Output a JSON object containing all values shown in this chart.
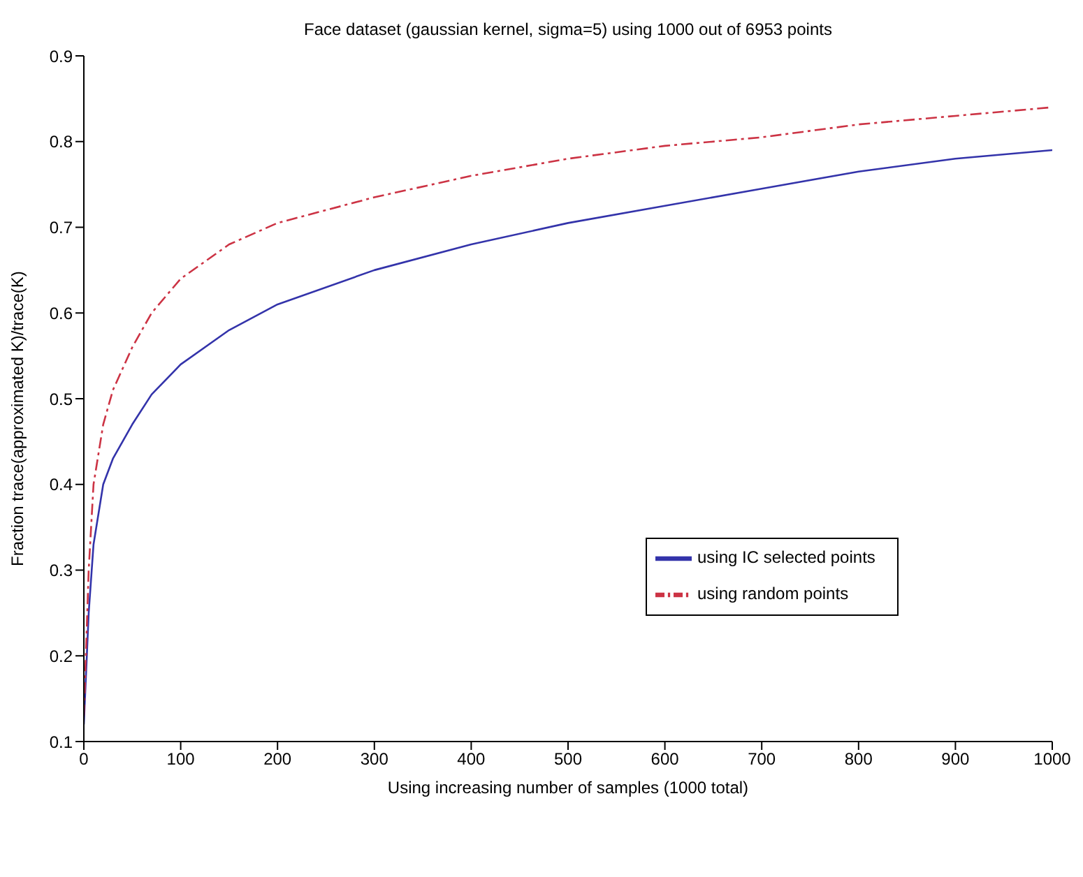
{
  "chart_data": {
    "type": "line",
    "title": "Face dataset (gaussian kernel, sigma=5) using 1000 out of 6953 points",
    "xlabel": "Using increasing number of samples (1000 total)",
    "ylabel": "Fraction trace(approximated K)/trace(K)",
    "x": [
      0,
      5,
      10,
      20,
      30,
      50,
      70,
      100,
      150,
      200,
      300,
      400,
      500,
      600,
      700,
      800,
      900,
      1000
    ],
    "series": [
      {
        "name": "using IC selected points",
        "color": "#3333aa",
        "line_style": "solid",
        "values": [
          0.12,
          0.25,
          0.33,
          0.4,
          0.43,
          0.47,
          0.505,
          0.54,
          0.58,
          0.61,
          0.65,
          0.68,
          0.705,
          0.725,
          0.745,
          0.765,
          0.78,
          0.79
        ]
      },
      {
        "name": "using random points",
        "color": "#cc3344",
        "line_style": "dashed",
        "values": [
          0.13,
          0.3,
          0.4,
          0.47,
          0.51,
          0.56,
          0.6,
          0.64,
          0.68,
          0.705,
          0.735,
          0.76,
          0.78,
          0.795,
          0.805,
          0.82,
          0.83,
          0.84
        ]
      }
    ],
    "xlim": [
      0,
      1000
    ],
    "xticks": [
      0,
      100,
      200,
      300,
      400,
      500,
      600,
      700,
      800,
      900,
      1000
    ],
    "ylim": [
      0.1,
      0.9
    ],
    "yticks": [
      0.1,
      0.2,
      0.3,
      0.4,
      0.5,
      0.6,
      0.7,
      0.8,
      0.9
    ],
    "grid": false,
    "legend": "right",
    "marker": "none"
  }
}
